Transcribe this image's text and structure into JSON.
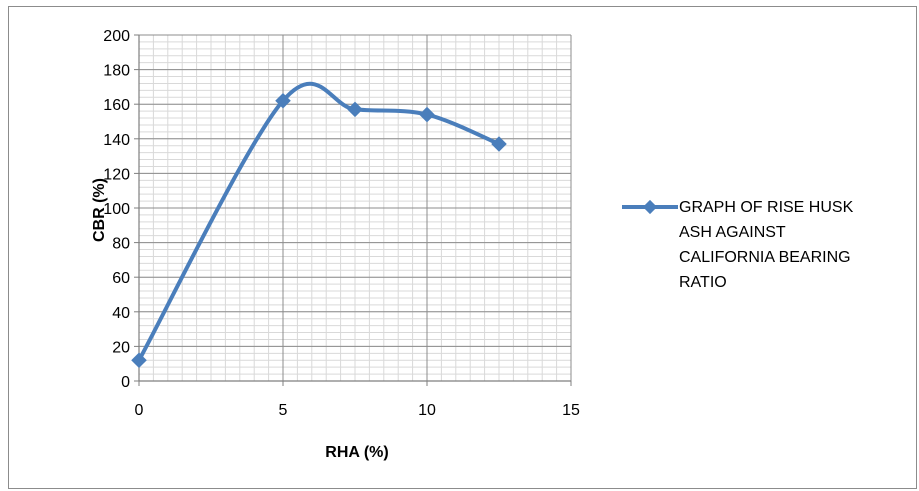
{
  "chart_data": {
    "type": "line",
    "xlabel": "RHA (%)",
    "ylabel": "CBR (%)",
    "xlim": [
      0,
      15
    ],
    "ylim": [
      0,
      200
    ],
    "x_ticks": [
      "0",
      "5",
      "10",
      "15"
    ],
    "y_ticks": [
      "0",
      "20",
      "40",
      "60",
      "80",
      "100",
      "120",
      "140",
      "160",
      "180",
      "200"
    ],
    "grid": true,
    "smooth": true,
    "legend_position": "right",
    "series": [
      {
        "name": "GRAPH OF RISE HUSK ASH AGAINST CALIFORNIA BEARING RATIO",
        "legend_lines": [
          "GRAPH OF RISE HUSK",
          "ASH AGAINST",
          "CALIFORNIA BEARING",
          "RATIO"
        ],
        "color": "#4a7ebb",
        "marker": "diamond",
        "x": [
          0,
          5,
          7.5,
          10,
          12.5
        ],
        "y": [
          12,
          162,
          157,
          154,
          137
        ]
      }
    ]
  }
}
